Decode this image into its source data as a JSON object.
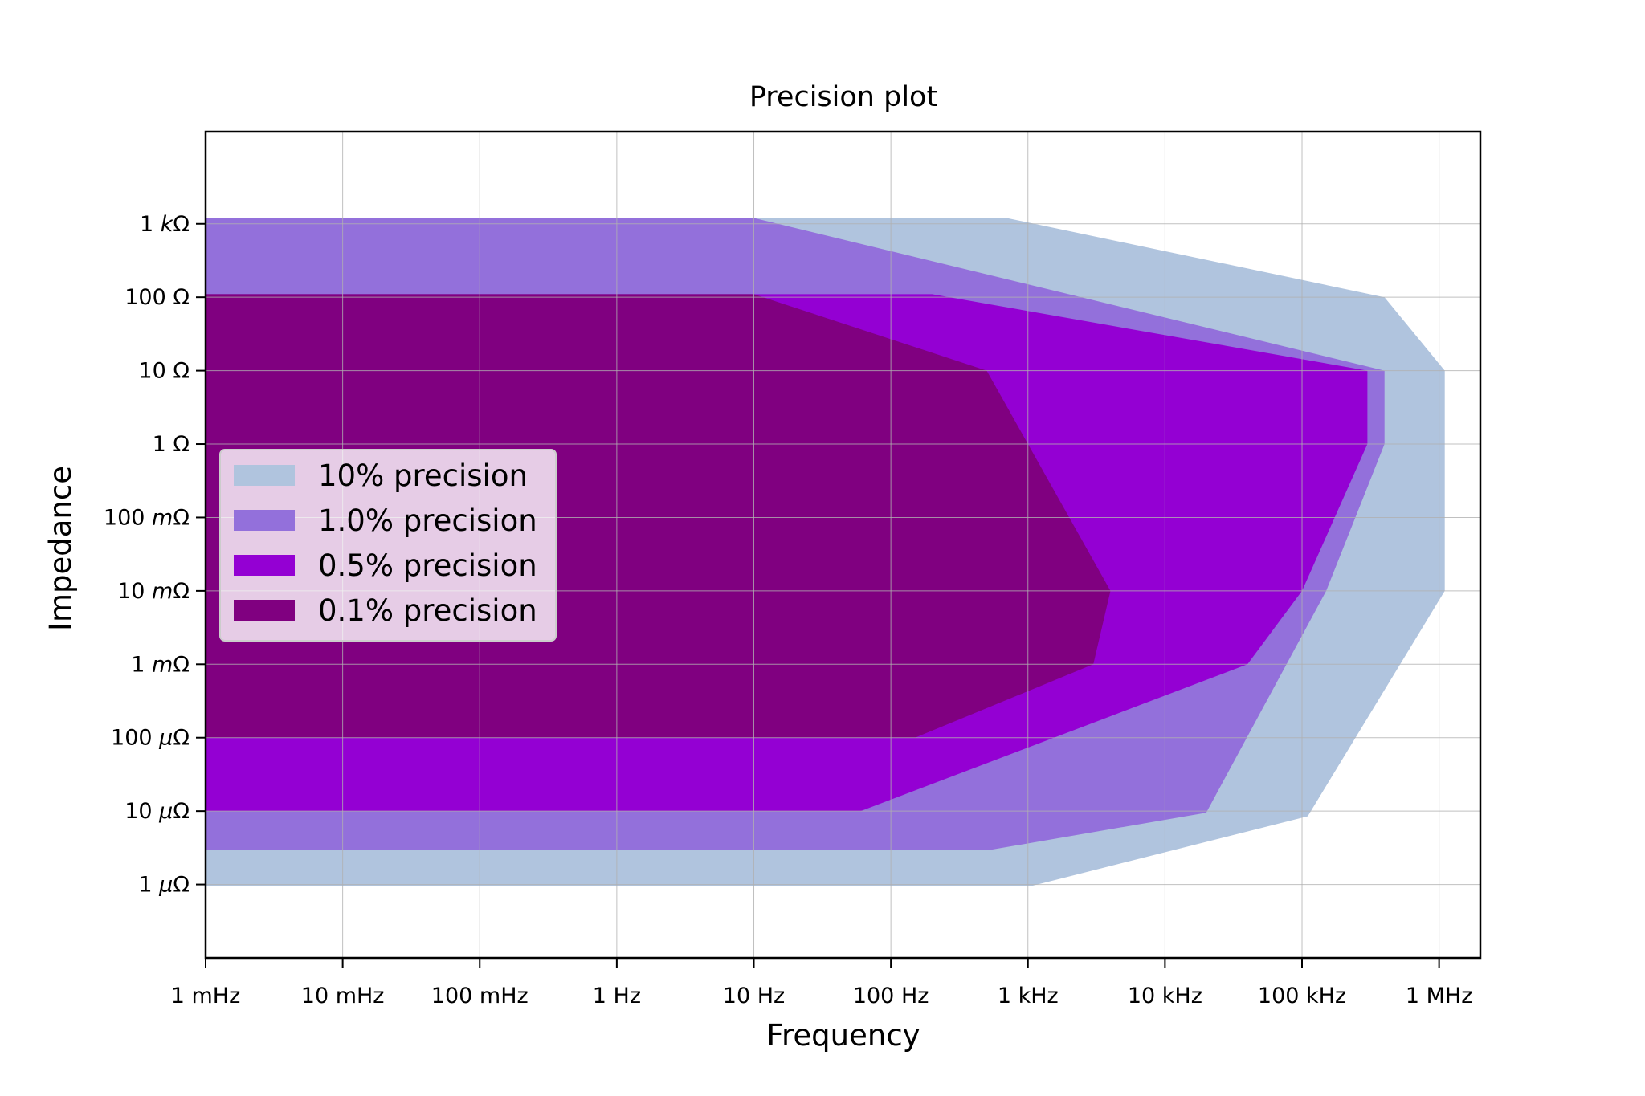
{
  "chart_data": {
    "type": "area",
    "title": "Precision plot",
    "xlabel": "Frequency",
    "ylabel": "Impedance",
    "x_scale": "log",
    "y_scale": "log",
    "xlim": [
      0.001,
      2000000
    ],
    "ylim": [
      1e-07,
      18000
    ],
    "grid": true,
    "legend_position": "center-left",
    "x_ticks": [
      {
        "value": 0.001,
        "label": "1 mHz"
      },
      {
        "value": 0.01,
        "label": "10 mHz"
      },
      {
        "value": 0.1,
        "label": "100 mHz"
      },
      {
        "value": 1,
        "label": "1 Hz"
      },
      {
        "value": 10,
        "label": "10 Hz"
      },
      {
        "value": 100,
        "label": "100 Hz"
      },
      {
        "value": 1000,
        "label": "1 kHz"
      },
      {
        "value": 10000,
        "label": "10 kHz"
      },
      {
        "value": 100000,
        "label": "100 kHz"
      },
      {
        "value": 1000000,
        "label": "1 MHz"
      }
    ],
    "y_ticks": [
      {
        "value": 1e-06,
        "num": "1 ",
        "unit": "μΩ"
      },
      {
        "value": 1e-05,
        "num": "10 ",
        "unit": "μΩ"
      },
      {
        "value": 0.0001,
        "num": "100 ",
        "unit": "μΩ"
      },
      {
        "value": 0.001,
        "num": "1 ",
        "unit": "mΩ"
      },
      {
        "value": 0.01,
        "num": "10 ",
        "unit": "mΩ"
      },
      {
        "value": 0.1,
        "num": "100 ",
        "unit": "mΩ"
      },
      {
        "value": 1,
        "num": "1 Ω",
        "unit": ""
      },
      {
        "value": 10,
        "num": "10 Ω",
        "unit": ""
      },
      {
        "value": 100,
        "num": "100 Ω",
        "unit": ""
      },
      {
        "value": 1000,
        "num": "1 ",
        "unit": "kΩ"
      }
    ],
    "series": [
      {
        "name": "10% precision",
        "color": "#b0c4de",
        "points": [
          [
            0.001,
            1200
          ],
          [
            700,
            1200
          ],
          [
            400000,
            100
          ],
          [
            1100000,
            10
          ],
          [
            1100000,
            0.01
          ],
          [
            110000,
            8.5e-06
          ],
          [
            1050,
            9.5e-07
          ],
          [
            0.001,
            9.5e-07
          ]
        ]
      },
      {
        "name": "1.0% precision",
        "color": "#9370db",
        "points": [
          [
            0.001,
            1200
          ],
          [
            10,
            1200
          ],
          [
            400000,
            10
          ],
          [
            400000,
            1
          ],
          [
            150000,
            0.01
          ],
          [
            20000,
            9.5e-06
          ],
          [
            550,
            3e-06
          ],
          [
            0.001,
            3e-06
          ]
        ]
      },
      {
        "name": "0.5% precision",
        "color": "#9400d3",
        "points": [
          [
            0.001,
            110
          ],
          [
            200,
            110
          ],
          [
            300000,
            10
          ],
          [
            300000,
            1
          ],
          [
            100000,
            0.01
          ],
          [
            40000,
            0.001
          ],
          [
            60,
            1e-05
          ],
          [
            0.001,
            1e-05
          ]
        ]
      },
      {
        "name": "0.1% precision",
        "color": "#800080",
        "points": [
          [
            0.001,
            110
          ],
          [
            10,
            110
          ],
          [
            500,
            10
          ],
          [
            1000,
            1
          ],
          [
            4000,
            0.01
          ],
          [
            3000,
            0.001
          ],
          [
            150,
            0.0001
          ],
          [
            0.001,
            0.0001
          ]
        ]
      }
    ]
  }
}
